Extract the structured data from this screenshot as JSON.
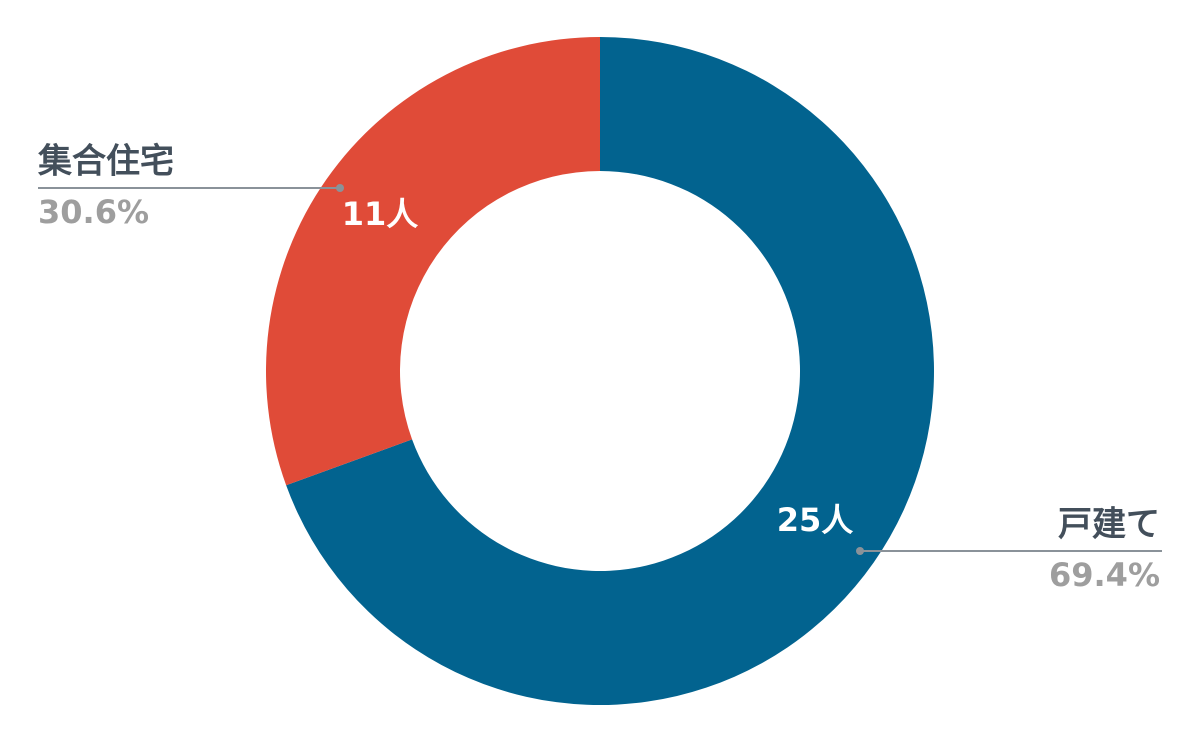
{
  "chart_data": {
    "type": "donut",
    "categories": [
      "戸建て",
      "集合住宅"
    ],
    "values": [
      25,
      11
    ],
    "value_labels": [
      "25人",
      "11人"
    ],
    "percents": [
      69.4,
      30.6
    ],
    "percent_labels": [
      "69.4%",
      "30.6%"
    ],
    "colors": [
      "#02638f",
      "#e04b38"
    ]
  }
}
